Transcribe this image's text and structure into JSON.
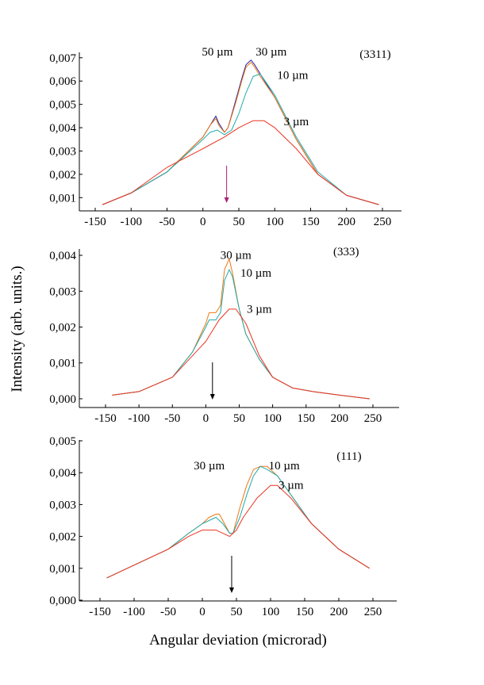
{
  "figure": {
    "ylabel": "Intensity (arb. units.)",
    "xlabel": "Angular deviation (microrad)"
  },
  "chart_data": [
    {
      "type": "line",
      "title": "(3311)",
      "xlim": [
        -150,
        250
      ],
      "ylim": [
        0.0005,
        0.0073
      ],
      "x_ticks": [
        -150,
        -100,
        -50,
        0,
        50,
        100,
        150,
        200,
        250
      ],
      "x_tick_labels": [
        "-150",
        "-100",
        "-50",
        "0",
        "50",
        "100",
        "150",
        "200",
        "250"
      ],
      "y_ticks": [
        0.001,
        0.002,
        0.003,
        0.004,
        0.005,
        0.006,
        0.007
      ],
      "y_tick_labels": [
        "0,001",
        "0,002",
        "0,003",
        "0,004",
        "0,005",
        "0,006",
        "0,007"
      ],
      "arrow_x": 33,
      "arrow_color": "#aa2277",
      "series": [
        {
          "name": "50 µm",
          "color": "#2222aa",
          "x": [
            -140,
            -100,
            -50,
            0,
            10,
            18,
            22,
            30,
            35,
            45,
            55,
            60,
            67,
            72,
            80,
            100,
            130,
            160,
            200,
            245
          ],
          "y": [
            0.0007,
            0.0012,
            0.0021,
            0.0036,
            0.0041,
            0.0045,
            0.0042,
            0.0038,
            0.004,
            0.0051,
            0.0062,
            0.0067,
            0.0069,
            0.0067,
            0.0063,
            0.0053,
            0.0035,
            0.002,
            0.0011,
            0.0007
          ]
        },
        {
          "name": "30 µm",
          "color": "#ee7711",
          "x": [
            -140,
            -100,
            -50,
            0,
            10,
            18,
            22,
            30,
            35,
            45,
            55,
            60,
            67,
            72,
            80,
            100,
            130,
            160,
            200,
            245
          ],
          "y": [
            0.0007,
            0.0012,
            0.0021,
            0.0036,
            0.0041,
            0.0044,
            0.0041,
            0.0038,
            0.004,
            0.005,
            0.0061,
            0.0066,
            0.0068,
            0.0066,
            0.0062,
            0.0053,
            0.0035,
            0.002,
            0.0011,
            0.0007
          ]
        },
        {
          "name": "10 µm",
          "color": "#22aaaa",
          "x": [
            -140,
            -100,
            -50,
            0,
            10,
            20,
            30,
            40,
            50,
            60,
            70,
            80,
            100,
            130,
            160,
            200,
            245
          ],
          "y": [
            0.0007,
            0.0012,
            0.0021,
            0.0035,
            0.0038,
            0.0039,
            0.0037,
            0.0039,
            0.0046,
            0.0055,
            0.0062,
            0.0063,
            0.0054,
            0.0036,
            0.0021,
            0.0011,
            0.0007
          ]
        },
        {
          "name": "3 µm",
          "color": "#ee3322",
          "x": [
            -140,
            -100,
            -50,
            0,
            30,
            50,
            70,
            85,
            100,
            130,
            160,
            200,
            245
          ],
          "y": [
            0.0007,
            0.0012,
            0.0023,
            0.0031,
            0.0036,
            0.004,
            0.0043,
            0.0043,
            0.004,
            0.0031,
            0.002,
            0.0011,
            0.0007
          ]
        }
      ],
      "labels": [
        {
          "text": "50 µm",
          "x": 20,
          "y": 0.0071
        },
        {
          "text": "30 µm",
          "x": 95,
          "y": 0.0071
        },
        {
          "text": "10 µm",
          "x": 125,
          "y": 0.0061
        },
        {
          "text": "3 µm",
          "x": 130,
          "y": 0.0041
        },
        {
          "text": "(3311)",
          "x": 240,
          "y": 0.007
        }
      ]
    },
    {
      "type": "line",
      "title": "(333)",
      "xlim": [
        -150,
        250
      ],
      "ylim": [
        -0.0002,
        0.0042
      ],
      "x_ticks": [
        -150,
        -100,
        -50,
        0,
        50,
        100,
        150,
        200,
        250
      ],
      "x_tick_labels": [
        "-150",
        "-100",
        "-50",
        "0",
        "50",
        "100",
        "150",
        "200",
        "250"
      ],
      "y_ticks": [
        0.0,
        0.001,
        0.002,
        0.003,
        0.004
      ],
      "y_tick_labels": [
        "0,000",
        "0,001",
        "0,002",
        "0,003",
        "0,004"
      ],
      "arrow_x": 10,
      "arrow_color": "#000000",
      "series": [
        {
          "name": "30 µm",
          "color": "#ee7711",
          "x": [
            -140,
            -100,
            -50,
            -20,
            0,
            5,
            15,
            22,
            28,
            35,
            40,
            50,
            60,
            80,
            100,
            130,
            160,
            200,
            245
          ],
          "y": [
            0.0001,
            0.0002,
            0.0006,
            0.0013,
            0.0021,
            0.0024,
            0.0024,
            0.0026,
            0.0036,
            0.0039,
            0.0035,
            0.0025,
            0.0018,
            0.0011,
            0.0006,
            0.0003,
            0.0002,
            0.0001,
            0.0
          ]
        },
        {
          "name": "10 µm",
          "color": "#22aaaa",
          "x": [
            -140,
            -100,
            -50,
            -20,
            0,
            5,
            15,
            22,
            28,
            35,
            40,
            50,
            60,
            80,
            100,
            130,
            160,
            200,
            245
          ],
          "y": [
            0.0001,
            0.0002,
            0.0006,
            0.0013,
            0.002,
            0.0022,
            0.0022,
            0.0024,
            0.0033,
            0.0036,
            0.0034,
            0.0025,
            0.0018,
            0.0011,
            0.0006,
            0.0003,
            0.0002,
            0.0001,
            0.0
          ]
        },
        {
          "name": "3 µm",
          "color": "#ee3322",
          "x": [
            -140,
            -100,
            -50,
            0,
            20,
            35,
            45,
            60,
            80,
            100,
            130,
            160,
            200,
            245
          ],
          "y": [
            0.0001,
            0.0002,
            0.0006,
            0.0016,
            0.0022,
            0.0025,
            0.0025,
            0.0021,
            0.0012,
            0.0006,
            0.0003,
            0.0002,
            0.0001,
            0.0
          ]
        }
      ],
      "labels": [
        {
          "text": "30 µm",
          "x": 45,
          "y": 0.0039
        },
        {
          "text": "10 µm",
          "x": 75,
          "y": 0.0034
        },
        {
          "text": "3 µm",
          "x": 80,
          "y": 0.0024
        },
        {
          "text": "(333)",
          "x": 210,
          "y": 0.004
        }
      ]
    },
    {
      "type": "line",
      "title": "(111)",
      "xlim": [
        -150,
        250
      ],
      "ylim": [
        0.0,
        0.005
      ],
      "x_ticks": [
        -150,
        -100,
        -50,
        0,
        50,
        100,
        150,
        200,
        250
      ],
      "x_tick_labels": [
        "-150",
        "-100",
        "-50",
        "0",
        "50",
        "100",
        "150",
        "200",
        "250"
      ],
      "y_ticks": [
        0.0,
        0.001,
        0.002,
        0.003,
        0.004,
        0.005
      ],
      "y_tick_labels": [
        "0,000",
        "0,001",
        "0,002",
        "0,003",
        "0,004",
        "0,005"
      ],
      "arrow_x": 43,
      "arrow_color": "#000000",
      "series": [
        {
          "name": "30 µm",
          "color": "#ee7711",
          "x": [
            -140,
            -100,
            -50,
            -20,
            0,
            10,
            20,
            25,
            30,
            40,
            45,
            55,
            65,
            75,
            85,
            95,
            110,
            130,
            160,
            200,
            245
          ],
          "y": [
            0.0007,
            0.0011,
            0.0016,
            0.0021,
            0.0024,
            0.0026,
            0.0027,
            0.0027,
            0.0025,
            0.0021,
            0.0021,
            0.0029,
            0.0036,
            0.0041,
            0.0042,
            0.0042,
            0.0039,
            0.0033,
            0.0024,
            0.0016,
            0.001
          ]
        },
        {
          "name": "10 µm",
          "color": "#22aaaa",
          "x": [
            -140,
            -100,
            -50,
            -20,
            0,
            10,
            20,
            30,
            40,
            45,
            55,
            65,
            75,
            85,
            95,
            110,
            130,
            160,
            200,
            245
          ],
          "y": [
            0.0007,
            0.0011,
            0.0016,
            0.0021,
            0.0024,
            0.0025,
            0.0026,
            0.0024,
            0.0021,
            0.0021,
            0.0026,
            0.0033,
            0.0039,
            0.0042,
            0.0041,
            0.0039,
            0.0033,
            0.0024,
            0.0016,
            0.001
          ]
        },
        {
          "name": "3 µm",
          "color": "#ee3322",
          "x": [
            -140,
            -100,
            -50,
            -20,
            0,
            20,
            40,
            50,
            60,
            80,
            100,
            110,
            130,
            160,
            200,
            245
          ],
          "y": [
            0.0007,
            0.0011,
            0.0016,
            0.002,
            0.0022,
            0.0022,
            0.002,
            0.0022,
            0.0026,
            0.0032,
            0.0036,
            0.0036,
            0.0032,
            0.0024,
            0.0016,
            0.001
          ]
        }
      ],
      "labels": [
        {
          "text": "30 µm",
          "x": 10,
          "y": 0.0041
        },
        {
          "text": "10 µm",
          "x": 120,
          "y": 0.0041
        },
        {
          "text": "3 µm",
          "x": 130,
          "y": 0.0035
        },
        {
          "text": "(111)",
          "x": 215,
          "y": 0.0044
        }
      ]
    }
  ]
}
